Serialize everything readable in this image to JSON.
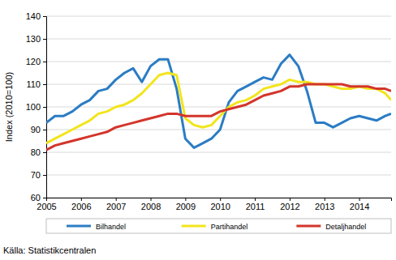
{
  "chart_data": {
    "type": "line",
    "y_label": "Index (2010=100)",
    "source": "Källa: Statistikcentralen",
    "x": [
      2005,
      2005.25,
      2005.5,
      2005.75,
      2006,
      2006.25,
      2006.5,
      2006.75,
      2007,
      2007.25,
      2007.5,
      2007.75,
      2008,
      2008.25,
      2008.5,
      2008.75,
      2009,
      2009.25,
      2009.5,
      2009.75,
      2010,
      2010.25,
      2010.5,
      2010.75,
      2011,
      2011.25,
      2011.5,
      2011.75,
      2012,
      2012.25,
      2012.5,
      2012.75,
      2013,
      2013.25,
      2013.5,
      2013.75,
      2014,
      2014.25,
      2014.5,
      2014.75,
      2014.92
    ],
    "series": [
      {
        "name": "Bilhandel",
        "color": "#2b7cc4",
        "values": [
          93,
          96,
          96,
          98,
          101,
          103,
          107,
          108,
          112,
          115,
          117,
          111,
          118,
          121,
          121,
          108,
          86,
          82,
          84,
          86,
          90,
          102,
          107,
          109,
          111,
          113,
          112,
          119,
          123,
          118,
          107,
          93,
          93,
          91,
          93,
          95,
          96,
          95,
          94,
          96,
          97
        ]
      },
      {
        "name": "Partihandel",
        "color": "#f2e51c",
        "values": [
          84,
          86,
          88,
          90,
          92,
          94,
          97,
          98,
          100,
          101,
          103,
          106,
          110,
          114,
          115,
          114,
          95,
          92,
          91,
          92,
          96,
          100,
          102,
          103,
          105,
          108,
          109,
          110,
          112,
          111,
          111,
          110,
          110,
          109,
          108,
          108,
          109,
          108,
          108,
          106,
          103
        ]
      },
      {
        "name": "Detaljhandel",
        "color": "#d3352b",
        "values": [
          81,
          83,
          84,
          85,
          86,
          87,
          88,
          89,
          91,
          92,
          93,
          94,
          95,
          96,
          97,
          97,
          96,
          96,
          96,
          96,
          98,
          99,
          100,
          101,
          103,
          105,
          106,
          107,
          109,
          109,
          110,
          110,
          110,
          110,
          110,
          109,
          109,
          109,
          108,
          108,
          107
        ]
      }
    ],
    "xlim": [
      2005,
      2014.92
    ],
    "xticks": [
      2005,
      2006,
      2007,
      2008,
      2009,
      2010,
      2011,
      2012,
      2013,
      2014
    ],
    "ylim": [
      60,
      140
    ],
    "yticks": [
      60,
      70,
      80,
      90,
      100,
      110,
      120,
      130,
      140
    ],
    "grid": true,
    "legend": "bottom"
  }
}
